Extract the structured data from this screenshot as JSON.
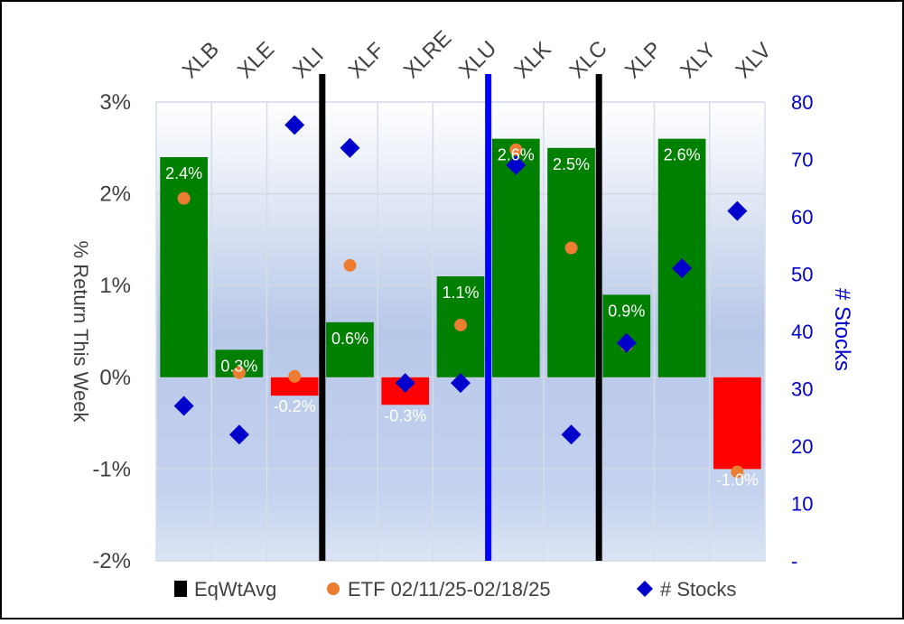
{
  "chart_data": {
    "type": "bar",
    "categories": [
      "XLB",
      "XLE",
      "XLI",
      "XLF",
      "XLRE",
      "XLU",
      "XLK",
      "XLC",
      "XLP",
      "XLY",
      "XLV"
    ],
    "series": [
      {
        "name": "EqWtAvg",
        "kind": "bar",
        "axis": "left",
        "values": [
          2.4,
          0.3,
          -0.2,
          0.6,
          -0.3,
          1.1,
          2.6,
          2.5,
          0.9,
          2.6,
          -1.0
        ],
        "labels": [
          "2.4%",
          "0.3%",
          "-0.2%",
          "0.6%",
          "-0.3%",
          "1.1%",
          "2.6%",
          "2.5%",
          "0.9%",
          "2.6%",
          "-1.0%"
        ],
        "positive_color": "#008000",
        "negative_color": "#ff0000"
      },
      {
        "name": "ETF 02/11/25-02/18/25",
        "kind": "scatter",
        "axis": "left",
        "values": [
          1.95,
          0.05,
          0.01,
          1.22,
          -0.08,
          0.57,
          2.48,
          1.41,
          0.35,
          1.19,
          -1.03
        ],
        "color": "#ed7d31"
      },
      {
        "name": "# Stocks",
        "kind": "scatter",
        "axis": "right",
        "values": [
          27,
          22,
          76,
          72,
          31,
          31,
          69,
          22,
          38,
          51,
          61
        ],
        "color": "#0000cc"
      }
    ],
    "dividers_after": [
      {
        "category_index": 2,
        "color": "#000000"
      },
      {
        "category_index": 5,
        "color": "#0000ff"
      },
      {
        "category_index": 7,
        "color": "#000000"
      }
    ],
    "ylim": [
      -2,
      3
    ],
    "yticks": [
      -2,
      -1,
      0,
      1,
      2,
      3
    ],
    "ytick_labels": [
      "-2%",
      "-1%",
      "0%",
      "1%",
      "2%",
      "3%"
    ],
    "ylabel": "% Return This Week",
    "y2lim": [
      0,
      80
    ],
    "y2ticks": [
      0,
      10,
      20,
      30,
      40,
      50,
      60,
      70,
      80
    ],
    "y2tick_labels": [
      "-",
      "10",
      "20",
      "30",
      "40",
      "50",
      "60",
      "70",
      "80"
    ],
    "y2label": "# Stocks",
    "legend": {
      "position": "bottom",
      "entries": [
        "EqWtAvg",
        "ETF 02/11/25-02/18/25",
        "# Stocks"
      ]
    },
    "grid": true
  }
}
